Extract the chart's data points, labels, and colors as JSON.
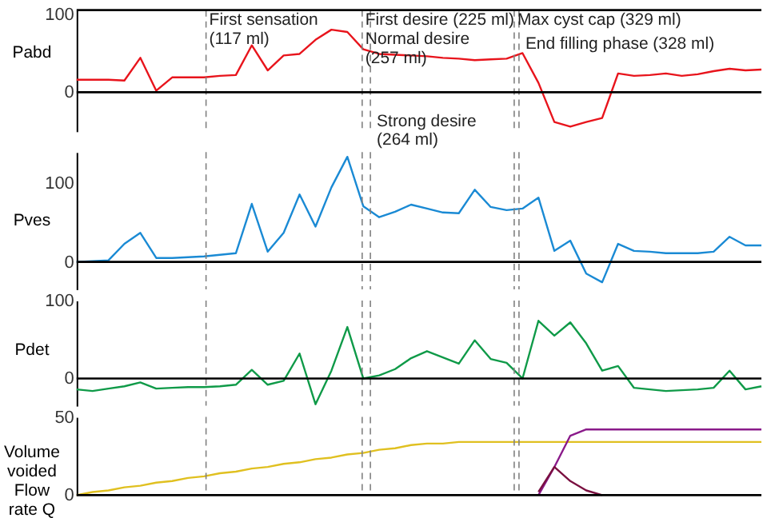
{
  "chart_data": [
    {
      "type": "line",
      "ylabel": "Pabd",
      "ylim": [
        -50,
        105
      ],
      "yticks": [
        0,
        100
      ],
      "tick_labels": "y",
      "grid": false,
      "marker": "none",
      "line_style": "solid",
      "categories": [
        null,
        null,
        null,
        null,
        null,
        null,
        null,
        null,
        null,
        null,
        null,
        null,
        null,
        null,
        null,
        null,
        null,
        null,
        null,
        null,
        null,
        null,
        null,
        null,
        null,
        null,
        null,
        null,
        null,
        null,
        null,
        null,
        null,
        null,
        null,
        null,
        null,
        null,
        null,
        null,
        null,
        null,
        null,
        null
      ],
      "series": [
        {
          "color": "#e8141c",
          "values": [
            16,
            16,
            16,
            15,
            44,
            2,
            19,
            19,
            19,
            21,
            22,
            60,
            28,
            47,
            49,
            67,
            80,
            77,
            55,
            49,
            48,
            47,
            46,
            44,
            43,
            41,
            42,
            43,
            50,
            12,
            -38,
            -44,
            -38,
            -33,
            24,
            21,
            22,
            24,
            21,
            23,
            27,
            30,
            28,
            29
          ]
        }
      ],
      "annotations": [
        "First sensation (117 ml)",
        "First desire (225 ml)",
        "Normal desire (257 ml)",
        "Strong desire (264 ml)",
        "Max cyst cap (329 ml)",
        "End filling phase (328 ml)"
      ],
      "ref_lines": [
        {
          "axis": "y",
          "value": 0,
          "color": "#000000",
          "line_style": "solid"
        }
      ]
    },
    {
      "type": "line",
      "ylabel": "Pves",
      "ylim": [
        -35,
        140
      ],
      "yticks": [
        0,
        100
      ],
      "tick_labels": "y",
      "grid": false,
      "marker": "none",
      "line_style": "solid",
      "categories": [
        null,
        null,
        null,
        null,
        null,
        null,
        null,
        null,
        null,
        null,
        null,
        null,
        null,
        null,
        null,
        null,
        null,
        null,
        null,
        null,
        null,
        null,
        null,
        null,
        null,
        null,
        null,
        null,
        null,
        null,
        null,
        null,
        null,
        null,
        null,
        null,
        null,
        null,
        null,
        null,
        null,
        null,
        null,
        null
      ],
      "series": [
        {
          "color": "#1a8ad4",
          "values": [
            0,
            1,
            2,
            23,
            37,
            5,
            5,
            6,
            7,
            9,
            11,
            74,
            13,
            37,
            86,
            45,
            95,
            134,
            71,
            57,
            64,
            73,
            68,
            63,
            62,
            92,
            70,
            66,
            68,
            82,
            14,
            27,
            -15,
            -26,
            23,
            14,
            13,
            11,
            11,
            11,
            13,
            32,
            21,
            21
          ]
        }
      ],
      "ref_lines": [
        {
          "axis": "y",
          "value": 0,
          "color": "#000000",
          "line_style": "solid"
        }
      ]
    },
    {
      "type": "line",
      "ylabel": "Pdet",
      "ylim": [
        -35,
        100
      ],
      "yticks": [
        0,
        100
      ],
      "tick_labels": "y",
      "grid": false,
      "marker": "none",
      "line_style": "solid",
      "categories": [
        null,
        null,
        null,
        null,
        null,
        null,
        null,
        null,
        null,
        null,
        null,
        null,
        null,
        null,
        null,
        null,
        null,
        null,
        null,
        null,
        null,
        null,
        null,
        null,
        null,
        null,
        null,
        null,
        null,
        null,
        null,
        null,
        null,
        null,
        null,
        null,
        null,
        null,
        null,
        null,
        null,
        null,
        null,
        null
      ],
      "series": [
        {
          "color": "#0f9a48",
          "values": [
            -14,
            -16,
            -13,
            -10,
            -5,
            -13,
            -12,
            -11,
            -11,
            -10,
            -8,
            11,
            -8,
            -3,
            32,
            -33,
            10,
            66,
            0,
            4,
            12,
            26,
            35,
            27,
            19,
            49,
            25,
            20,
            0,
            74,
            55,
            72,
            45,
            10,
            16,
            -12,
            -14,
            -16,
            -15,
            -14,
            -12,
            10,
            -14,
            -10
          ]
        }
      ],
      "ref_lines": [
        {
          "axis": "y",
          "value": 0,
          "color": "#000000",
          "line_style": "solid"
        }
      ]
    },
    {
      "type": "line",
      "ylabel": "Volume voided Flow rate Q",
      "ylim": [
        0,
        50
      ],
      "yticks": [
        0,
        50
      ],
      "tick_labels": "y",
      "grid": false,
      "marker": "none",
      "line_style": "solid",
      "categories": [
        null,
        null,
        null,
        null,
        null,
        null,
        null,
        null,
        null,
        null,
        null,
        null,
        null,
        null,
        null,
        null,
        null,
        null,
        null,
        null,
        null,
        null,
        null,
        null,
        null,
        null,
        null,
        null,
        null,
        null,
        null,
        null,
        null,
        null,
        null,
        null,
        null,
        null,
        null,
        null,
        null,
        null,
        null,
        null
      ],
      "series": [
        {
          "color": "#e0c020",
          "values": [
            0,
            2,
            3,
            5,
            6,
            8,
            9,
            11,
            12,
            14,
            15,
            17,
            18,
            20,
            21,
            23,
            24,
            26,
            27,
            29,
            30,
            32,
            33,
            33,
            34,
            34,
            34,
            34,
            34,
            34,
            34,
            34,
            34,
            34,
            34,
            34,
            34,
            34,
            34,
            34,
            34,
            34,
            34,
            34
          ]
        },
        {
          "color": "#8a1a8a",
          "values": [
            null,
            null,
            null,
            null,
            null,
            null,
            null,
            null,
            null,
            null,
            null,
            null,
            null,
            null,
            null,
            null,
            null,
            null,
            null,
            null,
            null,
            null,
            null,
            null,
            null,
            null,
            null,
            null,
            null,
            0,
            18,
            38,
            42,
            42,
            42,
            42,
            42,
            42,
            42,
            42,
            42,
            42,
            42,
            42
          ]
        },
        {
          "color": "#7a1040",
          "values": [
            null,
            null,
            null,
            null,
            null,
            null,
            null,
            null,
            null,
            null,
            null,
            null,
            null,
            null,
            null,
            null,
            null,
            null,
            null,
            null,
            null,
            null,
            null,
            null,
            null,
            null,
            null,
            null,
            null,
            2,
            18,
            9,
            3,
            0,
            null,
            null,
            null,
            null,
            null,
            null,
            null,
            null,
            null,
            null
          ]
        }
      ],
      "ref_lines": [
        {
          "axis": "y",
          "value": 0,
          "color": "#000000",
          "line_style": "solid"
        }
      ]
    }
  ]
}
